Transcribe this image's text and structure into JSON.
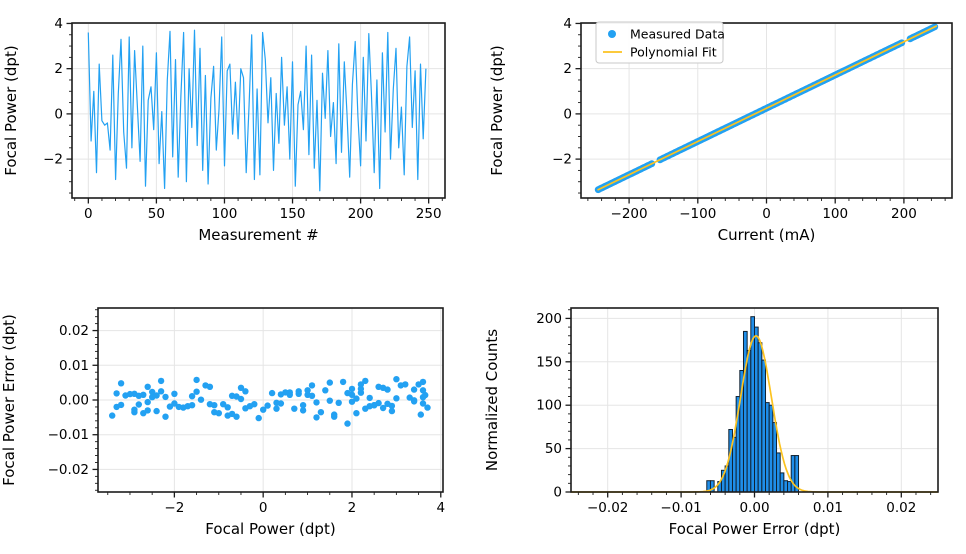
{
  "figure": {
    "background": "#ffffff",
    "colors": {
      "data_blue": "#23a1f2",
      "fit_gold": "#fcc320",
      "hist_fill": "#1f8ee9",
      "hist_edge": "#0f2233",
      "grid": "#e5e5e5",
      "spine": "#1c1c1c",
      "text": "#000000",
      "legend_border": "#c9c9c9",
      "legend_bg": "#ffffff"
    }
  },
  "chart_data": [
    {
      "id": "measurements",
      "type": "line",
      "xlabel": "Measurement #",
      "ylabel": "Focal Power (dpt)",
      "xlim": [
        -12,
        262
      ],
      "ylim": [
        -3.72,
        4.02
      ],
      "xticks": {
        "values": [
          0,
          50,
          100,
          150,
          200,
          250
        ],
        "labels": [
          "0",
          "50",
          "100",
          "150",
          "200",
          "250"
        ],
        "minor_step": 10
      },
      "yticks": {
        "values": [
          4,
          2,
          0,
          -2
        ],
        "labels": [
          "4",
          "2",
          "0",
          "−2"
        ],
        "minor_step": 0.5
      },
      "grid": true,
      "x_step": 2,
      "values": [
        3.6,
        -1.2,
        1.0,
        -2.6,
        2.2,
        -0.3,
        -0.5,
        -0.4,
        -1.6,
        2.6,
        -2.9,
        0.9,
        3.3,
        -0.8,
        -2.4,
        3.4,
        -1.5,
        2.8,
        0.4,
        -2.1,
        3.0,
        -3.2,
        0.6,
        1.2,
        -0.7,
        2.7,
        -2.2,
        0.1,
        -3.3,
        1.5,
        3.65,
        -1.9,
        2.4,
        -2.8,
        0.8,
        3.6,
        -3.0,
        2.0,
        -0.6,
        3.7,
        -1.4,
        2.9,
        -2.5,
        1.7,
        -3.1,
        0.7,
        2.1,
        -1.6,
        0.2,
        3.4,
        -2.3,
        1.9,
        2.2,
        -0.9,
        1.4,
        -1.1,
        2.0,
        1.6,
        -2.6,
        0.3,
        3.5,
        -2.9,
        1.1,
        -2.7,
        3.6,
        2.4,
        -0.4,
        1.6,
        -2.5,
        0.9,
        -1.3,
        2.5,
        -0.5,
        1.2,
        -2.0,
        2.3,
        -3.2,
        0.4,
        1.0,
        -0.7,
        3.0,
        -1.8,
        2.6,
        -2.4,
        0.6,
        -3.4,
        1.8,
        -0.2,
        2.8,
        -1.0,
        0.5,
        -2.2,
        3.1,
        -1.7,
        2.3,
        0.0,
        -2.8,
        1.3,
        3.2,
        -0.1,
        -2.3,
        2.5,
        -1.2,
        3.55,
        0.8,
        -2.6,
        1.5,
        -3.3,
        2.7,
        -0.8,
        3.6,
        -2.0,
        1.1,
        2.9,
        -1.5,
        0.3,
        -2.7,
        2.1,
        3.4,
        -0.6,
        1.9,
        -2.9,
        2.2,
        -1.1,
        2.0
      ]
    },
    {
      "id": "calibration",
      "type": "scatter_fit",
      "xlabel": "Current (mA)",
      "ylabel": "Focal Power (dpt)",
      "xlim": [
        -270,
        270
      ],
      "ylim": [
        -3.72,
        4.02
      ],
      "xticks": {
        "values": [
          -200,
          -100,
          0,
          100,
          200
        ],
        "labels": [
          "−200",
          "−100",
          "0",
          "100",
          "200"
        ],
        "minor_step": 20
      },
      "yticks": {
        "values": [
          4,
          2,
          0,
          -2
        ],
        "labels": [
          "4",
          "2",
          "0",
          "−2"
        ],
        "minor_step": 0.5
      },
      "grid": true,
      "scatter": {
        "x_start": -245,
        "x_end": 245,
        "step": 2,
        "gaps": [
          [
            -166,
            -157
          ],
          [
            199,
            208
          ]
        ]
      },
      "fit": {
        "slope": 0.0147,
        "intercept": 0.25,
        "x_start": -246,
        "x_end": 248
      },
      "legend": [
        {
          "label": "Measured Data",
          "marker": "dot"
        },
        {
          "label": "Polynomial Fit",
          "marker": "line"
        }
      ]
    },
    {
      "id": "residuals",
      "type": "scatter",
      "xlabel": "Focal Power (dpt)",
      "ylabel": "Focal Power Error (dpt)",
      "xlim": [
        -3.72,
        4.05
      ],
      "ylim": [
        -0.0265,
        0.0265
      ],
      "xticks": {
        "values": [
          -2,
          0,
          2,
          4
        ],
        "labels": [
          "−2",
          "0",
          "2",
          "4"
        ],
        "minor_step": 0.5
      },
      "yticks": {
        "values": [
          0.02,
          0.01,
          0,
          -0.01,
          -0.02
        ],
        "labels": [
          "0.02",
          "0.01",
          "0.00",
          "−0.01",
          "−0.02"
        ],
        "minor_step": 0.002
      },
      "grid": true,
      "x_source": "measurements",
      "errors": [
        0.0008,
        -0.0012,
        0.0015,
        -0.0006,
        0.0021,
        -0.0018,
        0.0003,
        -0.0024,
        0.0011,
        -0.0009,
        0.0018,
        -0.0015,
        0.0007,
        -0.0021,
        0.0013,
        -0.0004,
        0.0024,
        -0.0011,
        0.0016,
        -0.0019,
        0.0005,
        -0.0014,
        0.0022,
        -0.0007,
        0.0012,
        -0.0023,
        0.0009,
        -0.0016,
        0.0019,
        -0.0002,
        0.0014,
        -0.002,
        0.0006,
        -0.0013,
        0.0025,
        -0.001,
        0.0017,
        -0.0005,
        0.001,
        -0.0022,
        0.0001,
        -0.0017,
        0.0023,
        -0.0008,
        0.0013,
        -0.0025,
        0.0004,
        -0.0015,
        0.002,
        -0.0001,
        0.0055,
        -0.0068,
        0.0032,
        -0.0012,
        0.0028,
        -0.0035,
        0.0015,
        -0.0042,
        0.0038,
        -0.0008,
        0.0045,
        -0.0028,
        0.0012,
        -0.0038,
        0.0052,
        -0.0018,
        0.0025,
        -0.0048,
        0.0008,
        -0.003,
        0.0042,
        -0.0015,
        0.0035,
        -0.005,
        0.0018,
        -0.0025,
        0.0048,
        -0.001,
        0.0028,
        -0.004,
        0.006,
        -0.0022,
        0.0038,
        -0.0032,
        0.0015,
        -0.0045,
        0.0052,
        -0.0012,
        0.003,
        -0.0038,
        0.0022,
        -0.0048,
        0.0042,
        -0.0018,
        0.0055,
        -0.0028,
        0.0012,
        -0.0035,
        0.0045,
        -0.0052,
        0.0025,
        -0.0015,
        0.0038,
        -0.0042,
        0.0018,
        -0.003,
        0.005,
        -0.002,
        0.0035,
        -0.0045,
        0.0028,
        -0.001,
        0.0042,
        -0.0032,
        0.0058,
        -0.0025,
        0.0015,
        -0.0038,
        0.003,
        -0.0048,
        0.002,
        -0.0035,
        0.0045,
        -0.0015,
        0.0032
      ]
    },
    {
      "id": "error_histogram",
      "type": "histogram",
      "xlabel": "Focal Power Error (dpt)",
      "ylabel": "Normalized Counts",
      "xlim": [
        -0.025,
        0.025
      ],
      "ylim": [
        0,
        212
      ],
      "xticks": {
        "values": [
          -0.02,
          -0.01,
          0,
          0.01,
          0.02
        ],
        "labels": [
          "−0.02",
          "−0.01",
          "0.00",
          "0.01",
          "0.02"
        ],
        "minor_step": 0.002
      },
      "yticks": {
        "values": [
          0,
          50,
          100,
          150,
          200
        ],
        "labels": [
          "0",
          "50",
          "100",
          "150",
          "200"
        ],
        "minor_step": 10
      },
      "grid": true,
      "bins": {
        "start": -0.0065,
        "width": 0.0005,
        "heights": [
          13,
          13,
          0,
          12,
          25,
          30,
          72,
          63,
          110,
          140,
          185,
          163,
          202,
          190,
          172,
          152,
          103,
          100,
          80,
          45,
          22,
          13,
          12,
          42,
          42
        ]
      },
      "gauss": {
        "amplitude": 180,
        "mean": 0.0002,
        "sigma": 0.0021
      }
    }
  ]
}
